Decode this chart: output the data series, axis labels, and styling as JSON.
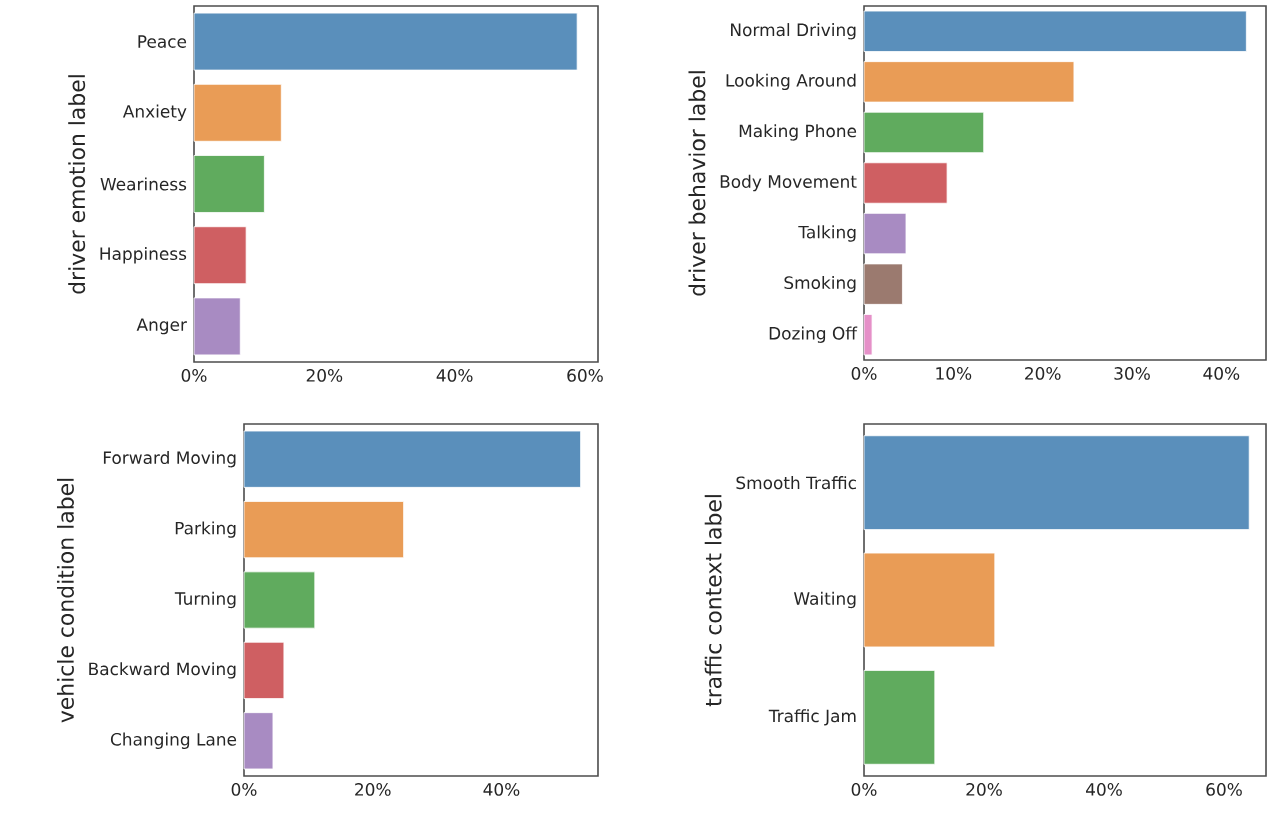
{
  "chart_data": [
    {
      "type": "bar",
      "orientation": "horizontal",
      "ylabel": "driver emotion label",
      "categories": [
        "Peace",
        "Anxiety",
        "Weariness",
        "Happiness",
        "Anger"
      ],
      "values": [
        58.8,
        13.4,
        10.8,
        8.0,
        7.1
      ],
      "colors": [
        "#5a8fbb",
        "#e99c56",
        "#60ab5e",
        "#cf5f62",
        "#a88bc2"
      ],
      "xlim": [
        0,
        62
      ],
      "xticks": [
        {
          "value": 0,
          "label": "0%"
        },
        {
          "value": 20,
          "label": "20%"
        },
        {
          "value": 40,
          "label": "40%"
        },
        {
          "value": 60,
          "label": "60%"
        }
      ]
    },
    {
      "type": "bar",
      "orientation": "horizontal",
      "ylabel": "driver behavior label",
      "categories": [
        "Normal Driving",
        "Looking Around",
        "Making Phone",
        "Body Movement",
        "Talking",
        "Smoking",
        "Dozing Off"
      ],
      "values": [
        42.8,
        23.5,
        13.4,
        9.3,
        4.7,
        4.3,
        0.9
      ],
      "colors": [
        "#5a8fbb",
        "#e99c56",
        "#60ab5e",
        "#cf5f62",
        "#a88bc2",
        "#9b7a6f",
        "#e590c8"
      ],
      "xlim": [
        0,
        45
      ],
      "xticks": [
        {
          "value": 0,
          "label": "0%"
        },
        {
          "value": 10,
          "label": "10%"
        },
        {
          "value": 20,
          "label": "20%"
        },
        {
          "value": 30,
          "label": "30%"
        },
        {
          "value": 40,
          "label": "40%"
        }
      ]
    },
    {
      "type": "bar",
      "orientation": "horizontal",
      "ylabel": "vehicle condition label",
      "categories": [
        "Forward Moving",
        "Parking",
        "Turning",
        "Backward Moving",
        "Changing Lane"
      ],
      "values": [
        52.3,
        24.8,
        11.0,
        6.2,
        4.5
      ],
      "colors": [
        "#5a8fbb",
        "#e99c56",
        "#60ab5e",
        "#cf5f62",
        "#a88bc2"
      ],
      "xlim": [
        0,
        55
      ],
      "xticks": [
        {
          "value": 0,
          "label": "0%"
        },
        {
          "value": 20,
          "label": "20%"
        },
        {
          "value": 40,
          "label": "40%"
        }
      ]
    },
    {
      "type": "bar",
      "orientation": "horizontal",
      "ylabel": "traffic context label",
      "categories": [
        "Smooth Traffic",
        "Waiting",
        "Traffic Jam"
      ],
      "values": [
        64.2,
        21.8,
        11.8
      ],
      "colors": [
        "#5a8fbb",
        "#e99c56",
        "#60ab5e"
      ],
      "xlim": [
        0,
        67
      ],
      "xticks": [
        {
          "value": 0,
          "label": "0%"
        },
        {
          "value": 20,
          "label": "20%"
        },
        {
          "value": 40,
          "label": "40%"
        },
        {
          "value": 60,
          "label": "60%"
        }
      ]
    }
  ]
}
